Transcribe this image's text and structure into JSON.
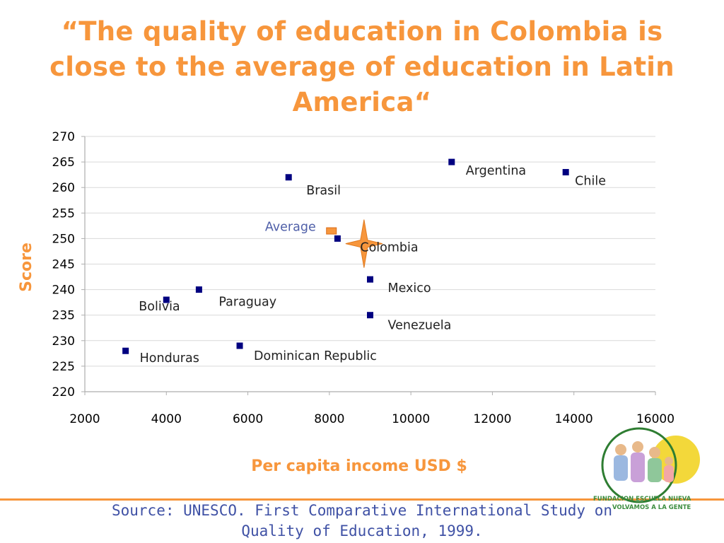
{
  "slide": {
    "title_lines": [
      "“The quality of education in Colombia is",
      "close to the average of education in Latin",
      "America“"
    ],
    "source_lines": [
      "Source: UNESCO. First Comparative International Study on",
      "Quality of Education, 1999."
    ],
    "logo": {
      "name": "Fundacion Escuela Nueva logo",
      "text_lines": [
        "FUNDACION ESCUELA NUEVA",
        "VOLVAMOS A LA GENTE"
      ]
    }
  },
  "colors": {
    "accent": "#F7963C",
    "marker": "#000080",
    "average_label": "#4F5FA8",
    "axis": "#AEAEAE",
    "source_text": "#3F51A5"
  },
  "chart_data": {
    "type": "scatter",
    "xlabel": "Per capita income USD $",
    "ylabel": "Score",
    "xlim": [
      2000,
      16000
    ],
    "ylim": [
      220,
      270
    ],
    "x_ticks": [
      "2000",
      "4000",
      "6000",
      "8000",
      "10000",
      "12000",
      "14000",
      "16000"
    ],
    "y_ticks": [
      "220",
      "225",
      "230",
      "235",
      "240",
      "245",
      "250",
      "255",
      "260",
      "265",
      "270"
    ],
    "grid": "horizontal",
    "points": [
      {
        "label": "Argentina",
        "x": 11000,
        "y": 265
      },
      {
        "label": "Chile",
        "x": 13800,
        "y": 263
      },
      {
        "label": "Brasil",
        "x": 7000,
        "y": 262
      },
      {
        "label": "Colombia",
        "x": 8200,
        "y": 250
      },
      {
        "label": "Mexico",
        "x": 9000,
        "y": 242
      },
      {
        "label": "Venezuela",
        "x": 9000,
        "y": 235
      },
      {
        "label": "Paraguay",
        "x": 4800,
        "y": 240
      },
      {
        "label": "Bolivia",
        "x": 4000,
        "y": 238
      },
      {
        "label": "Honduras",
        "x": 3000,
        "y": 228
      },
      {
        "label": "Dominican Republic",
        "x": 5800,
        "y": 229
      }
    ],
    "average": {
      "label": "Average",
      "x": 8050,
      "y": 251.5
    },
    "highlight": {
      "label": "Colombia",
      "x": 8850,
      "y": 249
    }
  }
}
